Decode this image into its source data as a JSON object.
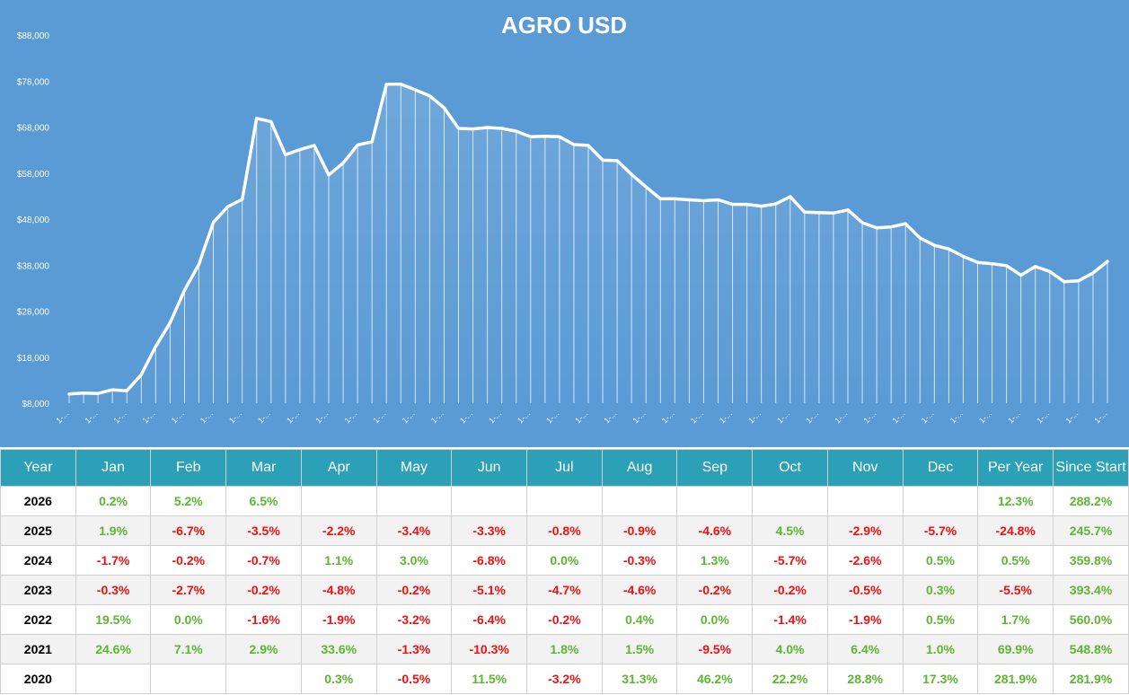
{
  "chart_data": {
    "type": "area",
    "title": "AGRO USD",
    "y_ticks": [
      "$8,000",
      "$18,000",
      "$28,000",
      "$38,000",
      "$48,000",
      "$58,000",
      "$68,000",
      "$78,000",
      "$88,000"
    ],
    "ylim": [
      8000,
      88000
    ],
    "x_tick_label": "1-...",
    "grid": false,
    "colors": {
      "background": "#5b9bd5",
      "line": "#ffffff",
      "fill_top": "#ffffff"
    },
    "values": [
      10000,
      10200,
      10100,
      10900,
      10700,
      14200,
      20300,
      25500,
      32500,
      38200,
      47300,
      50700,
      52300,
      69900,
      69200,
      62000,
      63100,
      64000,
      57600,
      60200,
      64100,
      64800,
      77300,
      77300,
      76100,
      74800,
      72200,
      67700,
      67600,
      67900,
      67700,
      67100,
      65900,
      66000,
      65900,
      64200,
      64000,
      60800,
      60700,
      57700,
      55000,
      52400,
      52400,
      52200,
      52000,
      52200,
      51200,
      51200,
      50800,
      51300,
      52900,
      49500,
      49400,
      49300,
      50000,
      47200,
      46100,
      46300,
      47000,
      43900,
      42300,
      41500,
      39900,
      38600,
      38300,
      37900,
      35800,
      37700,
      36600,
      34400,
      34600,
      36300,
      38800
    ]
  },
  "table": {
    "headers": [
      "Year",
      "Jan",
      "Feb",
      "Mar",
      "Apr",
      "May",
      "Jun",
      "Jul",
      "Aug",
      "Sep",
      "Oct",
      "Nov",
      "Dec",
      "Per Year",
      "Since Start"
    ],
    "rows": [
      [
        "2026",
        "0.2%",
        "5.2%",
        "6.5%",
        "",
        "",
        "",
        "",
        "",
        "",
        "",
        "",
        "",
        "12.3%",
        "288.2%"
      ],
      [
        "2025",
        "1.9%",
        "-6.7%",
        "-3.5%",
        "-2.2%",
        "-3.4%",
        "-3.3%",
        "-0.8%",
        "-0.9%",
        "-4.6%",
        "4.5%",
        "-2.9%",
        "-5.7%",
        "-24.8%",
        "245.7%"
      ],
      [
        "2024",
        "-1.7%",
        "-0.2%",
        "-0.7%",
        "1.1%",
        "3.0%",
        "-6.8%",
        "0.0%",
        "-0.3%",
        "1.3%",
        "-5.7%",
        "-2.6%",
        "0.5%",
        "0.5%",
        "359.8%"
      ],
      [
        "2023",
        "-0.3%",
        "-2.7%",
        "-0.2%",
        "-4.8%",
        "-0.2%",
        "-5.1%",
        "-4.7%",
        "-4.6%",
        "-0.2%",
        "-0.2%",
        "-0.5%",
        "0.3%",
        "-5.5%",
        "393.4%"
      ],
      [
        "2022",
        "19.5%",
        "0.0%",
        "-1.6%",
        "-1.9%",
        "-3.2%",
        "-6.4%",
        "-0.2%",
        "0.4%",
        "0.0%",
        "-1.4%",
        "-1.9%",
        "0.5%",
        "1.7%",
        "560.0%"
      ],
      [
        "2021",
        "24.6%",
        "7.1%",
        "2.9%",
        "33.6%",
        "-1.3%",
        "-10.3%",
        "1.8%",
        "1.5%",
        "-9.5%",
        "4.0%",
        "6.4%",
        "1.0%",
        "69.9%",
        "548.8%"
      ],
      [
        "2020",
        "",
        "",
        "",
        "0.3%",
        "-0.5%",
        "11.5%",
        "-3.2%",
        "31.3%",
        "46.2%",
        "22.2%",
        "28.8%",
        "17.3%",
        "281.9%",
        "281.9%"
      ]
    ],
    "colors": {
      "header_bg": "#2ba0b6",
      "positive": "#5db532",
      "negative": "#ee1111"
    }
  }
}
